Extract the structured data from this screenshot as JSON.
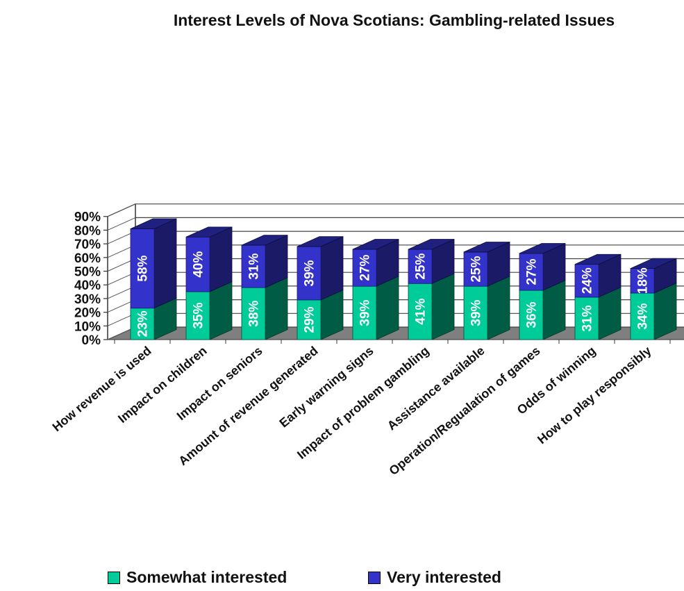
{
  "chart_data": {
    "type": "bar",
    "stacked": true,
    "three_d": true,
    "title": "Interest Levels of Nova Scotians: Gambling-related Issues",
    "categories": [
      "How revenue is used",
      "Impact on children",
      "Impact on seniors",
      "Amount of revenue generated",
      "Early warning signs",
      "Impact of problem gambling",
      "Assistance available",
      "Operation/Regualation of games",
      "Odds of winning",
      "How to play responsibly"
    ],
    "series": [
      {
        "name": "Somewhat interested",
        "color": "#00cc99",
        "values": [
          23,
          35,
          38,
          29,
          39,
          41,
          39,
          36,
          31,
          34
        ],
        "labels": [
          "23%",
          "35%",
          "38%",
          "29%",
          "39%",
          "41%",
          "39%",
          "36%",
          "31%",
          "34%"
        ]
      },
      {
        "name": "Very interested",
        "color": "#3333cc",
        "values": [
          58,
          40,
          31,
          39,
          27,
          25,
          25,
          27,
          24,
          18
        ],
        "labels": [
          "58%",
          "40%",
          "31%",
          "39%",
          "27%",
          "25%",
          "25%",
          "27%",
          "24%",
          "18%"
        ]
      }
    ],
    "y_ticks": [
      "0%",
      "10%",
      "20%",
      "30%",
      "40%",
      "50%",
      "60%",
      "70%",
      "80%",
      "90%"
    ],
    "ylim": [
      0,
      90
    ],
    "gridlines": true,
    "legend_position": "bottom"
  }
}
